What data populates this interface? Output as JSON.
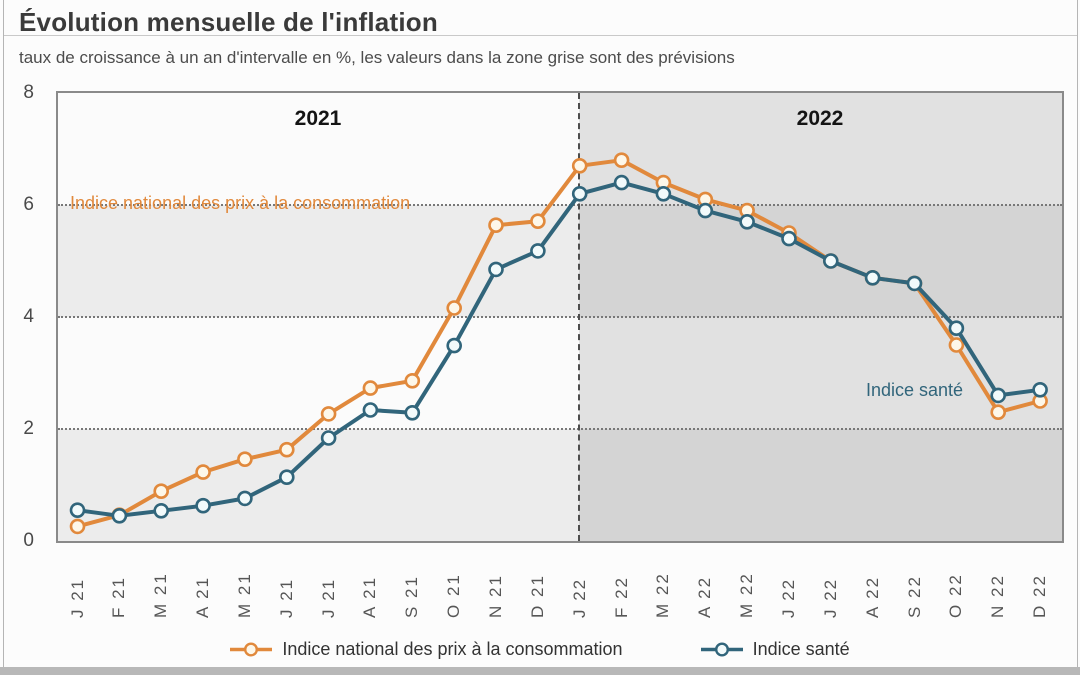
{
  "header": {
    "title": "Évolution mensuelle de l'inflation",
    "subtitle": "taux de croissance à un an d'intervalle en %, les valeurs dans la zone grise sont des prévisions"
  },
  "chart_data": {
    "type": "line",
    "title": "Évolution mensuelle de l'inflation",
    "xlabel": "",
    "ylabel": "taux de croissance à un an d'intervalle en %",
    "ylim": [
      0,
      8
    ],
    "y_ticks": [
      8,
      6,
      4,
      2,
      0
    ],
    "grid": "horizontal dotted lines at 2, 4 and 6",
    "legend_position": "bottom",
    "categories": [
      "J 21",
      "F 21",
      "M 21",
      "A 21",
      "M 21",
      "J 21",
      "J 21",
      "A 21",
      "S 21",
      "O 21",
      "N 21",
      "D 21",
      "J 22",
      "F 22",
      "M 22",
      "A 22",
      "M 22",
      "J 22",
      "J 22",
      "A 22",
      "S 22",
      "O 22",
      "N 22",
      "D 22"
    ],
    "series": [
      {
        "name": "Indice national des prix à la consommation",
        "color": "#E1893C",
        "marker_fill": "#FDF7E9",
        "values": [
          0.26,
          0.46,
          0.89,
          1.23,
          1.46,
          1.63,
          2.27,
          2.73,
          2.86,
          4.16,
          5.64,
          5.71,
          6.7,
          6.8,
          6.4,
          6.1,
          5.9,
          5.5,
          5.0,
          4.7,
          4.6,
          3.5,
          2.3,
          2.5
        ]
      },
      {
        "name": "Indice santé",
        "color": "#31657B",
        "marker_fill": "#F2FAFB",
        "values": [
          0.55,
          0.45,
          0.54,
          0.63,
          0.76,
          1.14,
          1.84,
          2.34,
          2.29,
          3.49,
          4.85,
          5.18,
          6.2,
          6.4,
          6.2,
          5.9,
          5.7,
          5.4,
          5.0,
          4.7,
          4.6,
          3.8,
          2.6,
          2.7
        ]
      }
    ],
    "zones": {
      "left_year_label": "2021",
      "right_year_label": "2022",
      "forecast_start_category": "J 22",
      "forecast_note": "les valeurs dans la zone grise sont des prévisions"
    }
  }
}
